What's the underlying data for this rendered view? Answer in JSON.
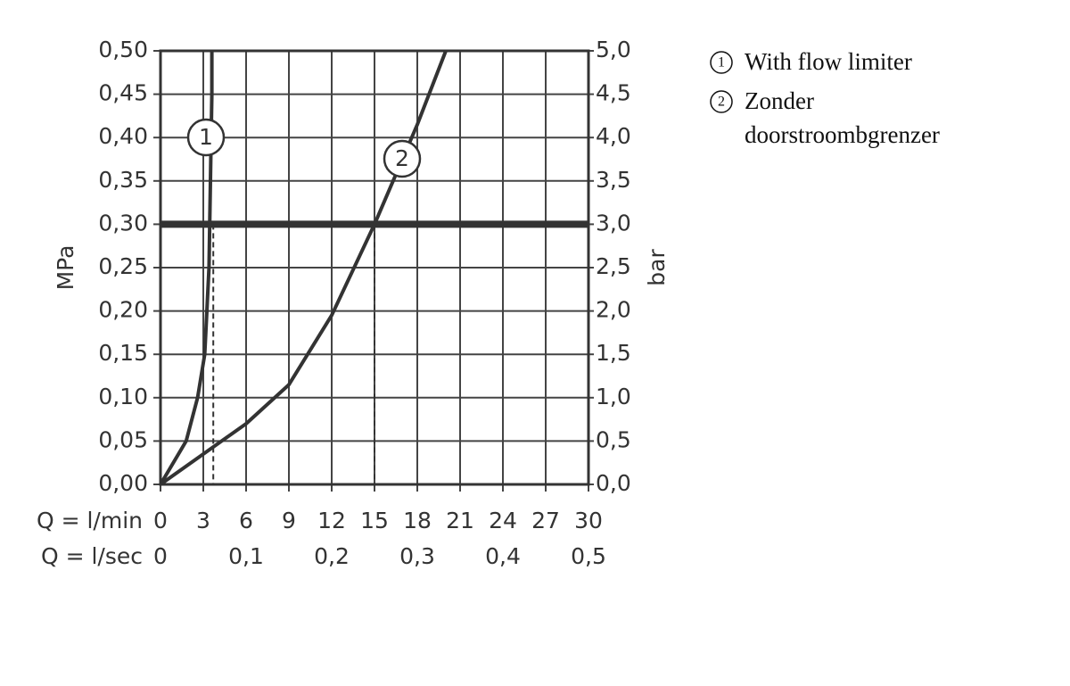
{
  "chart_data": {
    "type": "line",
    "x_axis_label": "Q = l/min",
    "x2_axis_label": "Q = l/sec",
    "y_axis_label": "MPa",
    "y2_axis_label": "bar",
    "xlim": [
      0,
      30
    ],
    "xticks": [
      0,
      3,
      6,
      9,
      12,
      15,
      18,
      21,
      24,
      27,
      30
    ],
    "x2lim": [
      0,
      0.5
    ],
    "x2ticks": [
      0,
      {
        "value": 0.1,
        "label": "0,1"
      },
      {
        "value": 0.2,
        "label": "0,2"
      },
      {
        "value": 0.3,
        "label": "0,3"
      },
      {
        "value": 0.4,
        "label": "0,4"
      },
      {
        "value": 0.5,
        "label": "0,5"
      }
    ],
    "ylim": [
      0,
      0.5
    ],
    "yticks": [
      {
        "value": 0,
        "label": "0,00"
      },
      {
        "value": 0.05,
        "label": "0,05"
      },
      {
        "value": 0.1,
        "label": "0,10"
      },
      {
        "value": 0.15,
        "label": "0,15"
      },
      {
        "value": 0.2,
        "label": "0,20"
      },
      {
        "value": 0.25,
        "label": "0,25"
      },
      {
        "value": 0.3,
        "label": "0,30"
      },
      {
        "value": 0.35,
        "label": "0,35"
      },
      {
        "value": 0.4,
        "label": "0,40"
      },
      {
        "value": 0.45,
        "label": "0,45"
      },
      {
        "value": 0.5,
        "label": "0,50"
      }
    ],
    "y2lim": [
      0,
      5
    ],
    "y2ticks": [
      {
        "value": 0,
        "label": "0,0"
      },
      {
        "value": 0.5,
        "label": "0,5"
      },
      {
        "value": 1,
        "label": "1,0"
      },
      {
        "value": 1.5,
        "label": "1,5"
      },
      {
        "value": 2,
        "label": "2,0"
      },
      {
        "value": 2.5,
        "label": "2,5"
      },
      {
        "value": 3,
        "label": "3,0"
      },
      {
        "value": 3.5,
        "label": "3,5"
      },
      {
        "value": 4,
        "label": "4,0"
      },
      {
        "value": 4.5,
        "label": "4,5"
      },
      {
        "value": 5,
        "label": "5,0"
      }
    ],
    "grid": true,
    "reference_y": 0.3,
    "reference_x": [
      3.7,
      15
    ],
    "series": [
      {
        "name": "With flow limiter",
        "marker": "1",
        "color": "#333333",
        "x": [
          0,
          1.8,
          2.6,
          3.1,
          3.4,
          3.5,
          3.6,
          3.6
        ],
        "values": [
          0,
          0.05,
          0.1,
          0.15,
          0.25,
          0.35,
          0.45,
          0.5
        ]
      },
      {
        "name": "Zonder doorstroombgrenzer",
        "marker": "2",
        "color": "#333333",
        "x": [
          0,
          6,
          9,
          12,
          15,
          18,
          20
        ],
        "values": [
          0,
          0.07,
          0.115,
          0.195,
          0.3,
          0.415,
          0.5
        ]
      }
    ]
  }
}
